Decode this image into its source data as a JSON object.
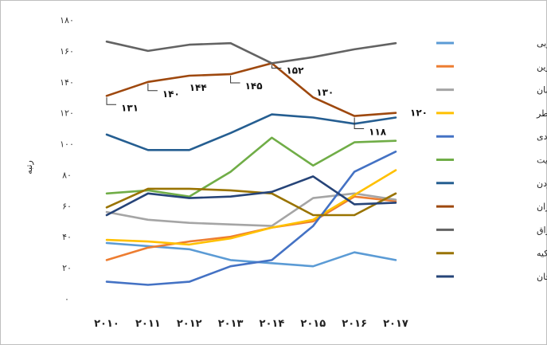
{
  "chart_data": {
    "type": "line",
    "title": "",
    "xlabel": "",
    "ylabel": "رتبه",
    "x": [
      "۲۰۱۰",
      "۲۰۱۱",
      "۲۰۱۲",
      "۲۰۱۳",
      "۲۰۱۴",
      "۲۰۱۵",
      "۲۰۱۶",
      "۲۰۱۷"
    ],
    "ylim": [
      0,
      180
    ],
    "yticks": [
      0,
      20,
      40,
      60,
      80,
      100,
      120,
      140,
      160,
      180
    ],
    "ytick_labels": [
      "۰",
      "۲۰",
      "۴۰",
      "۶۰",
      "۸۰",
      "۱۰۰",
      "۱۲۰",
      "۱۴۰",
      "۱۶۰",
      "۱۸۰"
    ],
    "grid": false,
    "legend_position": "right",
    "series": [
      {
        "name": "امارات متحده عربی",
        "color": "#5B9BD5",
        "values": [
          36,
          34,
          32,
          25,
          23,
          21,
          30,
          25
        ]
      },
      {
        "name": "بحرین",
        "color": "#ED7D31",
        "values": [
          25,
          33,
          37,
          40,
          46,
          50,
          66,
          63
        ]
      },
      {
        "name": "عمان",
        "color": "#A5A5A5",
        "values": [
          56,
          51,
          49,
          48,
          47,
          65,
          68,
          64
        ]
      },
      {
        "name": "قطر",
        "color": "#FFC000",
        "values": [
          38,
          37,
          35,
          39,
          46,
          51,
          67,
          83
        ]
      },
      {
        "name": "عربستان صعودی",
        "color": "#4472C4",
        "values": [
          11,
          9,
          11,
          21,
          25,
          47,
          82,
          95
        ]
      },
      {
        "name": "کویت",
        "color": "#70AD47",
        "values": [
          68,
          70,
          66,
          82,
          104,
          86,
          101,
          102
        ]
      },
      {
        "name": "اردن",
        "color": "#255E91",
        "values": [
          106,
          96,
          96,
          107,
          119,
          117,
          113,
          117
        ]
      },
      {
        "name": "ایران",
        "color": "#9E480E",
        "values": [
          131,
          140,
          144,
          145,
          152,
          130,
          118,
          120
        ]
      },
      {
        "name": "عراق",
        "color": "#636363",
        "values": [
          166,
          160,
          164,
          165,
          152,
          156,
          161,
          165
        ]
      },
      {
        "name": "ترکیه",
        "color": "#997300",
        "values": [
          59,
          71,
          71,
          70,
          68,
          54,
          54,
          68
        ]
      },
      {
        "name": "آذربایجان",
        "color": "#264478",
        "values": [
          54,
          68,
          65,
          66,
          69,
          79,
          61,
          62
        ]
      }
    ],
    "annotations": [
      {
        "series": "ایران",
        "x_index": 0,
        "label": "۱۳۱"
      },
      {
        "series": "ایران",
        "x_index": 1,
        "label": "۱۴۰"
      },
      {
        "series": "ایران",
        "x_index": 2,
        "label": "۱۴۴"
      },
      {
        "series": "ایران",
        "x_index": 3,
        "label": "۱۴۵"
      },
      {
        "series": "ایران",
        "x_index": 4,
        "label": "۱۵۲"
      },
      {
        "series": "ایران",
        "x_index": 5,
        "label": "۱۳۰"
      },
      {
        "series": "ایران",
        "x_index": 6,
        "label": "۱۱۸"
      },
      {
        "series": "ایران",
        "x_index": 7,
        "label": "۱۲۰"
      }
    ]
  }
}
